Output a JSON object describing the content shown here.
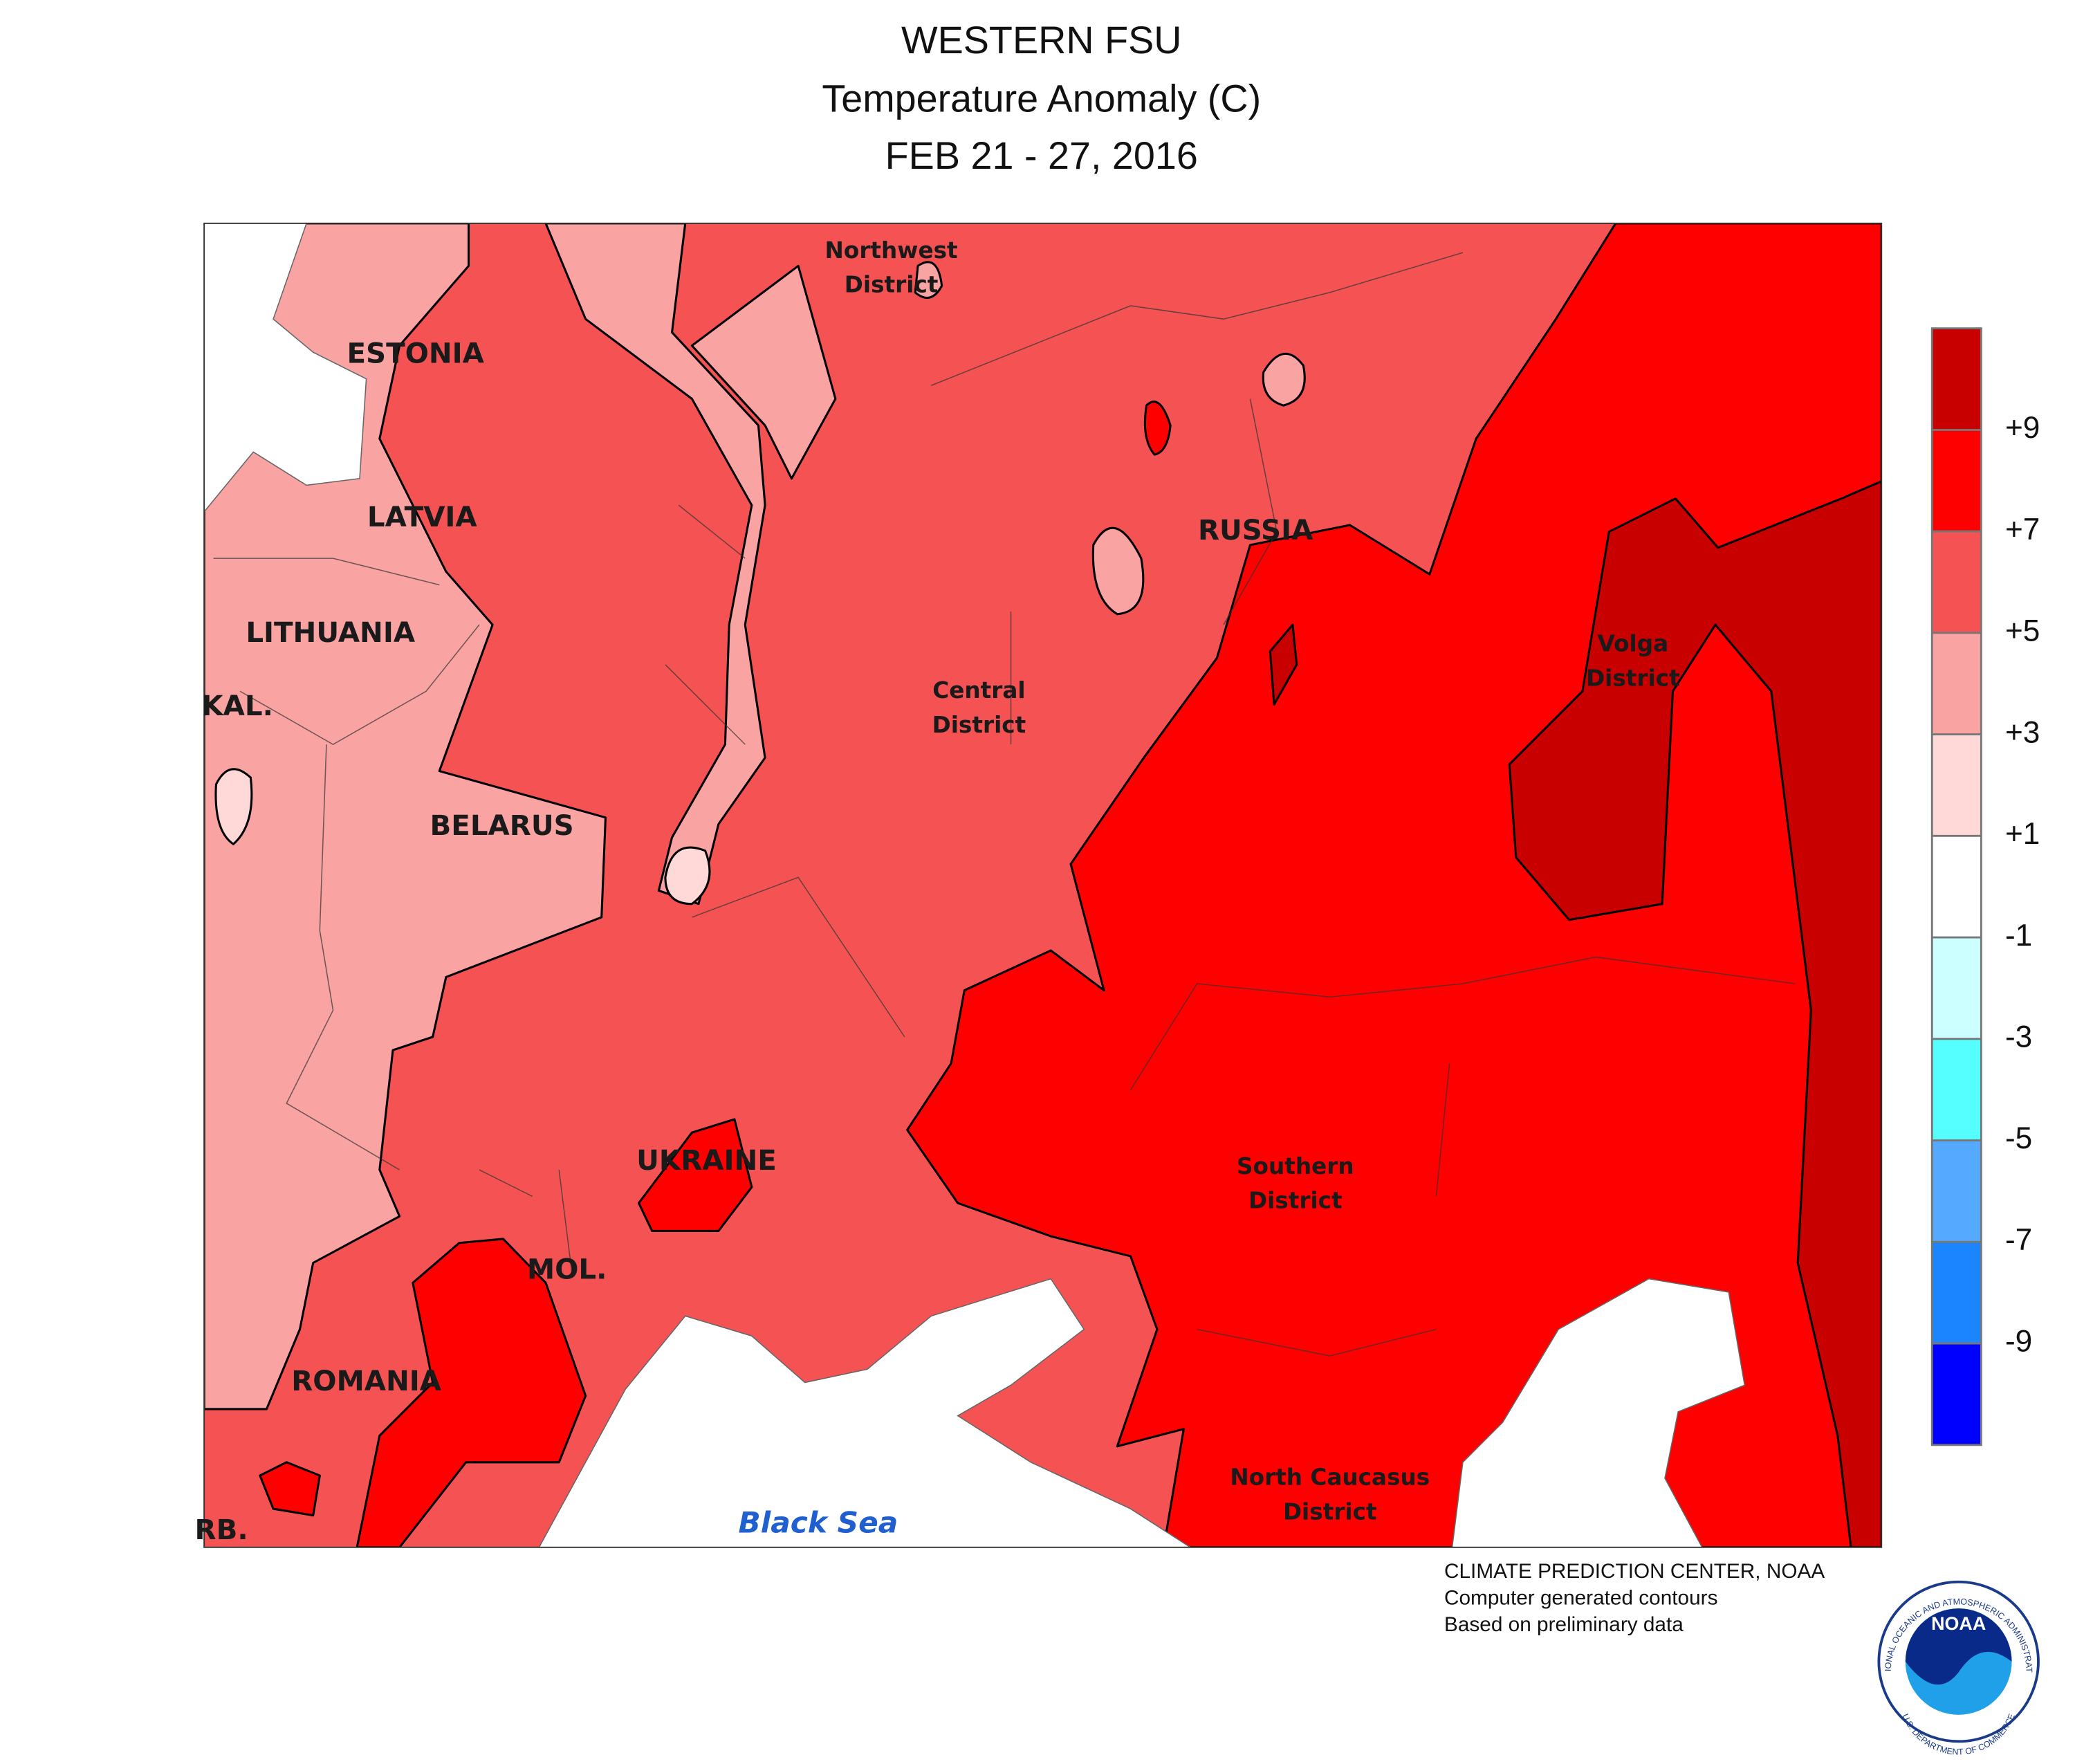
{
  "header": {
    "title": "WESTERN FSU",
    "subtitle": "Temperature Anomaly (C)",
    "date": "FEB 21 - 27, 2016"
  },
  "map": {
    "labels": [
      "ESTONIA",
      "LATVIA",
      "LITHUANIA",
      "KAL.",
      "BELARUS",
      "RUSSIA",
      "UKRAINE",
      "MOL.",
      "ROMANIA",
      "RB.",
      "Northwest",
      "District",
      "Central",
      "District",
      "Volga",
      "District",
      "Southern",
      "District",
      "North Caucasus",
      "District",
      "Black Sea"
    ]
  },
  "legend": {
    "colors": [
      "#c80000",
      "#ff0000",
      "#f55353",
      "#f9a3a3",
      "#ffd8d8",
      "#ffffff",
      "#ccffff",
      "#55ffff",
      "#55aaff",
      "#1a85ff",
      "#0000ff"
    ],
    "ticks": [
      {
        "value": 9,
        "label": "+9"
      },
      {
        "value": 7,
        "label": "+7"
      },
      {
        "value": 5,
        "label": "+5"
      },
      {
        "value": 3,
        "label": "+3"
      },
      {
        "value": 1,
        "label": "+1"
      },
      -1,
      -3,
      -5,
      -7,
      -9
    ]
  },
  "credits": [
    "CLIMATE PREDICTION CENTER, NOAA",
    "Computer generated contours",
    "Based on preliminary data"
  ],
  "logo": {
    "name": "NOAA",
    "ring_top": "NATIONAL OCEANIC AND ATMOSPHERIC ADMINISTRATION",
    "ring_bottom": "U.S. DEPARTMENT OF COMMERCE"
  }
}
